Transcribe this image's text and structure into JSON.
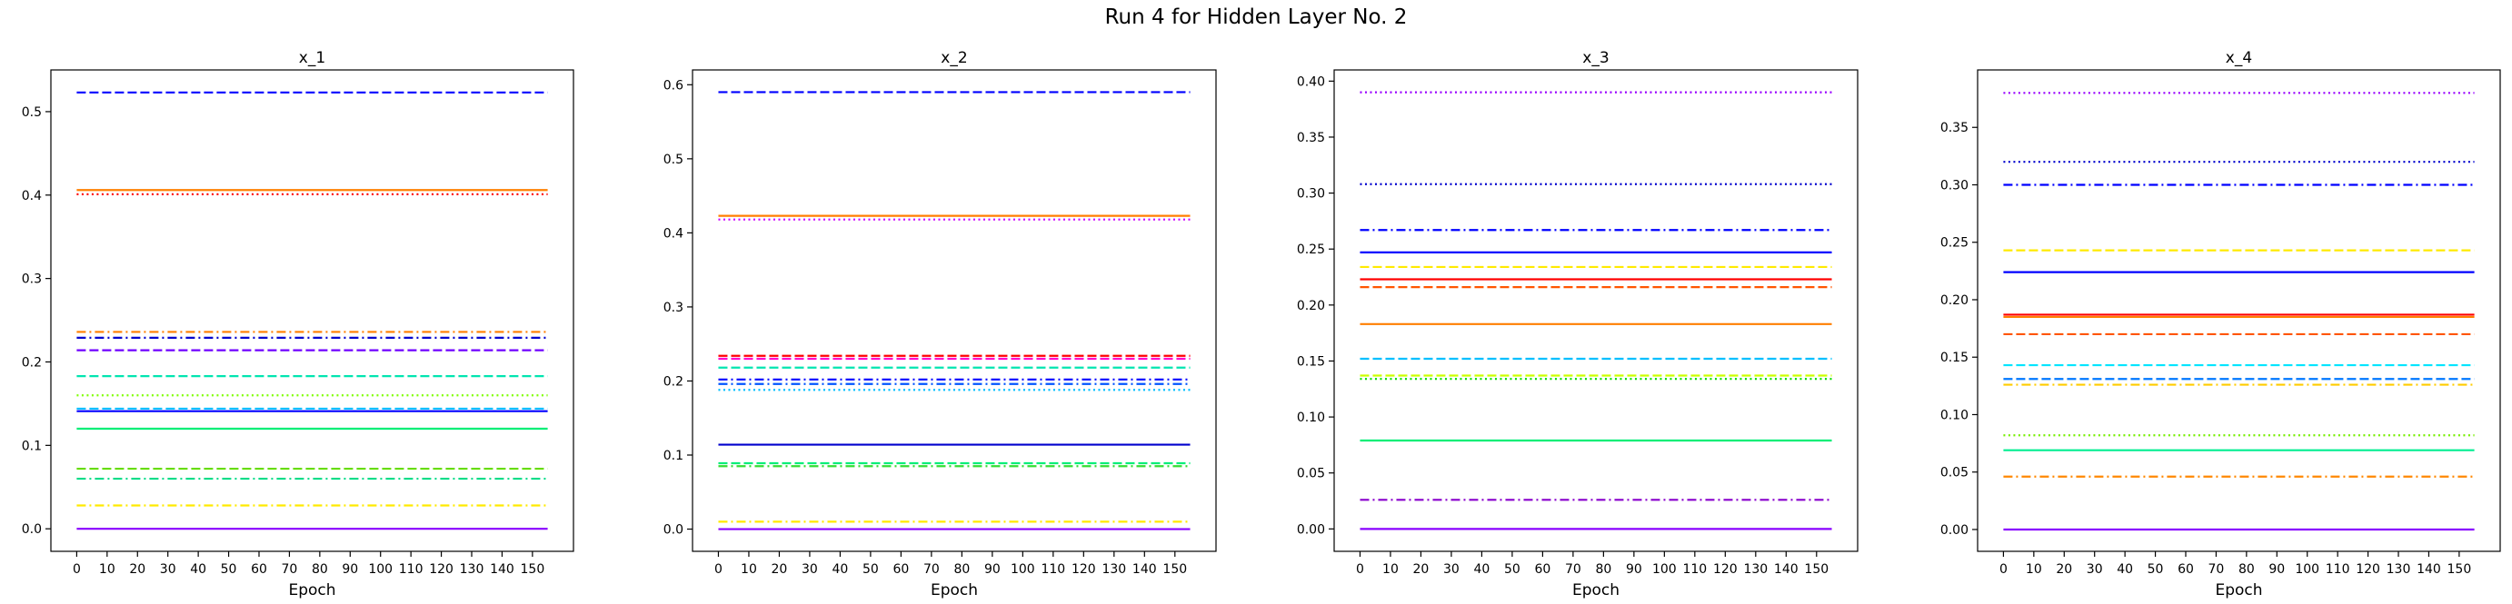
{
  "suptitle": "Run 4 for Hidden Layer No. 2",
  "xticks": [
    0,
    10,
    20,
    30,
    40,
    50,
    60,
    70,
    80,
    90,
    100,
    110,
    120,
    130,
    140,
    150
  ],
  "chart_data": [
    {
      "type": "line",
      "title": "x_1",
      "xlabel": "Epoch",
      "ylabel": "",
      "xlim": [
        -8.5,
        163.5
      ],
      "ylim": [
        -0.027,
        0.55
      ],
      "x": [
        0,
        155
      ],
      "yticks": [
        0.0,
        0.1,
        0.2,
        0.3,
        0.4,
        0.5
      ],
      "ytick_labels": [
        "0.0",
        "0.1",
        "0.2",
        "0.3",
        "0.4",
        "0.5"
      ],
      "series": [
        {
          "color": "#0000ff",
          "dash": "dashed",
          "value": 0.523
        },
        {
          "color": "#ff7f00",
          "dash": "solid",
          "value": 0.406
        },
        {
          "color": "#ff0000",
          "dash": "dotted",
          "value": 0.401
        },
        {
          "color": "#ff7f00",
          "dash": "dashdot",
          "value": 0.236
        },
        {
          "color": "#0000cd",
          "dash": "dashdot",
          "value": 0.229
        },
        {
          "color": "#6f00ff",
          "dash": "dashed",
          "value": 0.214
        },
        {
          "color": "#00e5b0",
          "dash": "dashed",
          "value": 0.183
        },
        {
          "color": "#7fff00",
          "dash": "dotted",
          "value": 0.16
        },
        {
          "color": "#00bfff",
          "dash": "dashed",
          "value": 0.144
        },
        {
          "color": "#0000ff",
          "dash": "solid",
          "value": 0.141
        },
        {
          "color": "#00ee76",
          "dash": "solid",
          "value": 0.12
        },
        {
          "color": "#66dd00",
          "dash": "dashed",
          "value": 0.072
        },
        {
          "color": "#00dd88",
          "dash": "dashdot",
          "value": 0.06
        },
        {
          "color": "#ffea00",
          "dash": "dashdot",
          "value": 0.028
        },
        {
          "color": "#8800ff",
          "dash": "solid",
          "value": 0.0
        }
      ]
    },
    {
      "type": "line",
      "title": "x_2",
      "xlabel": "Epoch",
      "ylabel": "",
      "xlim": [
        -8.5,
        163.5
      ],
      "ylim": [
        -0.03,
        0.62
      ],
      "x": [
        0,
        155
      ],
      "yticks": [
        0.0,
        0.1,
        0.2,
        0.3,
        0.4,
        0.5,
        0.6
      ],
      "ytick_labels": [
        "0.0",
        "0.1",
        "0.2",
        "0.3",
        "0.4",
        "0.5",
        "0.6"
      ],
      "series": [
        {
          "color": "#0000ff",
          "dash": "dashed",
          "value": 0.59
        },
        {
          "color": "#ff7f00",
          "dash": "solid",
          "value": 0.423
        },
        {
          "color": "#cc00ff",
          "dash": "dotted",
          "value": 0.418
        },
        {
          "color": "#ff0000",
          "dash": "dashed",
          "value": 0.234
        },
        {
          "color": "#ff00cc",
          "dash": "dashed",
          "value": 0.23
        },
        {
          "color": "#00e5b0",
          "dash": "dashed",
          "value": 0.218
        },
        {
          "color": "#0000ff",
          "dash": "dashdot",
          "value": 0.202
        },
        {
          "color": "#0055ff",
          "dash": "dashdot",
          "value": 0.196
        },
        {
          "color": "#00bfff",
          "dash": "dotted",
          "value": 0.188
        },
        {
          "color": "#0000cd",
          "dash": "solid",
          "value": 0.114
        },
        {
          "color": "#00ee76",
          "dash": "dashed",
          "value": 0.089
        },
        {
          "color": "#33dd33",
          "dash": "dashdot",
          "value": 0.085
        },
        {
          "color": "#ffea00",
          "dash": "dashdot",
          "value": 0.01
        },
        {
          "color": "#8800ff",
          "dash": "solid",
          "value": 0.0
        }
      ]
    },
    {
      "type": "line",
      "title": "x_3",
      "xlabel": "Epoch",
      "ylabel": "",
      "xlim": [
        -8.5,
        163.5
      ],
      "ylim": [
        -0.02,
        0.41
      ],
      "x": [
        0,
        155
      ],
      "yticks": [
        0.0,
        0.05,
        0.1,
        0.15,
        0.2,
        0.25,
        0.3,
        0.35,
        0.4
      ],
      "ytick_labels": [
        "0.00",
        "0.05",
        "0.10",
        "0.15",
        "0.20",
        "0.25",
        "0.30",
        "0.35",
        "0.40"
      ],
      "series": [
        {
          "color": "#9900ff",
          "dash": "dotted",
          "value": 0.39
        },
        {
          "color": "#0000cd",
          "dash": "dotted",
          "value": 0.308
        },
        {
          "color": "#0000ff",
          "dash": "dashdot",
          "value": 0.267
        },
        {
          "color": "#0000ff",
          "dash": "solid",
          "value": 0.247
        },
        {
          "color": "#ffea00",
          "dash": "dashed",
          "value": 0.234
        },
        {
          "color": "#ff0000",
          "dash": "solid",
          "value": 0.223
        },
        {
          "color": "#ff5500",
          "dash": "dashed",
          "value": 0.216
        },
        {
          "color": "#ff7f00",
          "dash": "solid",
          "value": 0.183
        },
        {
          "color": "#00bfff",
          "dash": "dashed",
          "value": 0.152
        },
        {
          "color": "#ccff00",
          "dash": "dashed",
          "value": 0.137
        },
        {
          "color": "#00dd00",
          "dash": "dotted",
          "value": 0.134
        },
        {
          "color": "#00ee76",
          "dash": "solid",
          "value": 0.079
        },
        {
          "color": "#8800cc",
          "dash": "dashdot",
          "value": 0.026
        },
        {
          "color": "#8800ff",
          "dash": "solid",
          "value": 0.0
        }
      ]
    },
    {
      "type": "line",
      "title": "x_4",
      "xlabel": "Epoch",
      "ylabel": "",
      "xlim": [
        -8.5,
        163.5
      ],
      "ylim": [
        -0.019,
        0.4
      ],
      "x": [
        0,
        155
      ],
      "yticks": [
        0.0,
        0.05,
        0.1,
        0.15,
        0.2,
        0.25,
        0.3,
        0.35
      ],
      "ytick_labels": [
        "0.00",
        "0.05",
        "0.10",
        "0.15",
        "0.20",
        "0.25",
        "0.30",
        "0.35"
      ],
      "series": [
        {
          "color": "#9900ff",
          "dash": "dotted",
          "value": 0.38
        },
        {
          "color": "#0000cd",
          "dash": "dotted",
          "value": 0.32
        },
        {
          "color": "#0000ff",
          "dash": "dashdot",
          "value": 0.3
        },
        {
          "color": "#ffea00",
          "dash": "dashed",
          "value": 0.243
        },
        {
          "color": "#0000ff",
          "dash": "solid",
          "value": 0.224
        },
        {
          "color": "#ff0000",
          "dash": "solid",
          "value": 0.187
        },
        {
          "color": "#ff7f00",
          "dash": "solid",
          "value": 0.185
        },
        {
          "color": "#ff5500",
          "dash": "dashed",
          "value": 0.17
        },
        {
          "color": "#00e5ff",
          "dash": "dashed",
          "value": 0.143
        },
        {
          "color": "#0077ff",
          "dash": "dashed",
          "value": 0.131
        },
        {
          "color": "#ffcc00",
          "dash": "dashdot",
          "value": 0.126
        },
        {
          "color": "#77ee00",
          "dash": "dotted",
          "value": 0.082
        },
        {
          "color": "#00ee90",
          "dash": "solid",
          "value": 0.069
        },
        {
          "color": "#ff8800",
          "dash": "dashdot",
          "value": 0.046
        },
        {
          "color": "#8800ff",
          "dash": "solid",
          "value": 0.0
        }
      ]
    }
  ]
}
